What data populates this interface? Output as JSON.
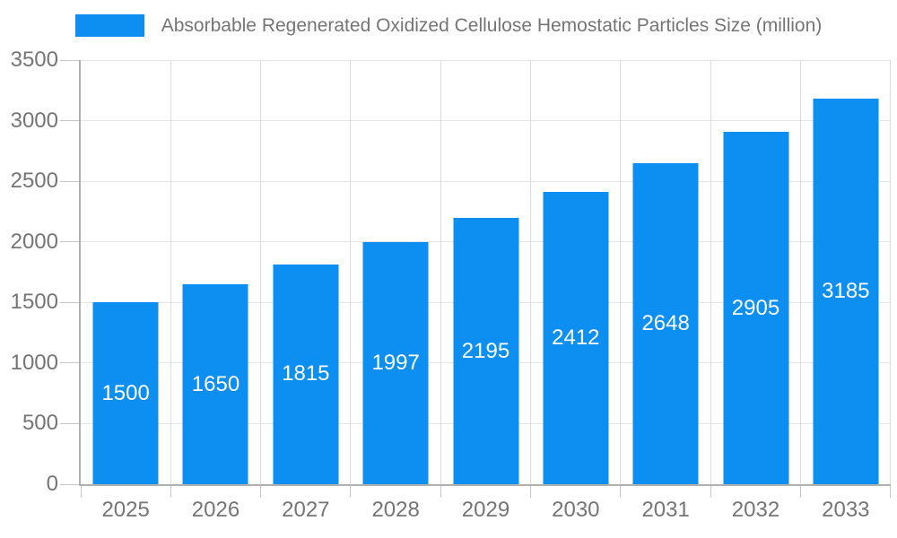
{
  "legend": {
    "label": "Absorbable Regenerated Oxidized Cellulose Hemostatic Particles Size (million)"
  },
  "colors": {
    "bar": "#0d8ff2",
    "axis_text": "#757575",
    "bar_label_text": "#ffffff",
    "axis_line": "#b0b0b0",
    "gridline_h": "#e6e6e6",
    "gridline_v": "#dcdcdc",
    "tick": "#c6c6c6"
  },
  "chart_data": {
    "type": "bar",
    "title": "Absorbable Regenerated Oxidized Cellulose Hemostatic Particles Size (million)",
    "categories": [
      "2025",
      "2026",
      "2027",
      "2028",
      "2029",
      "2030",
      "2031",
      "2032",
      "2033"
    ],
    "series": [
      {
        "name": "Absorbable Regenerated Oxidized Cellulose Hemostatic Particles Size (million)",
        "values": [
          1500,
          1650,
          1815,
          1997,
          2195,
          2412,
          2648,
          2905,
          3185
        ]
      }
    ],
    "xlabel": "",
    "ylabel": "",
    "ylim": [
      0,
      3500
    ],
    "yticks": [
      0,
      500,
      1000,
      1500,
      2000,
      2500,
      3000,
      3500
    ],
    "grid": true,
    "legend_position": "top",
    "bar_value_labels": "centered-white"
  }
}
